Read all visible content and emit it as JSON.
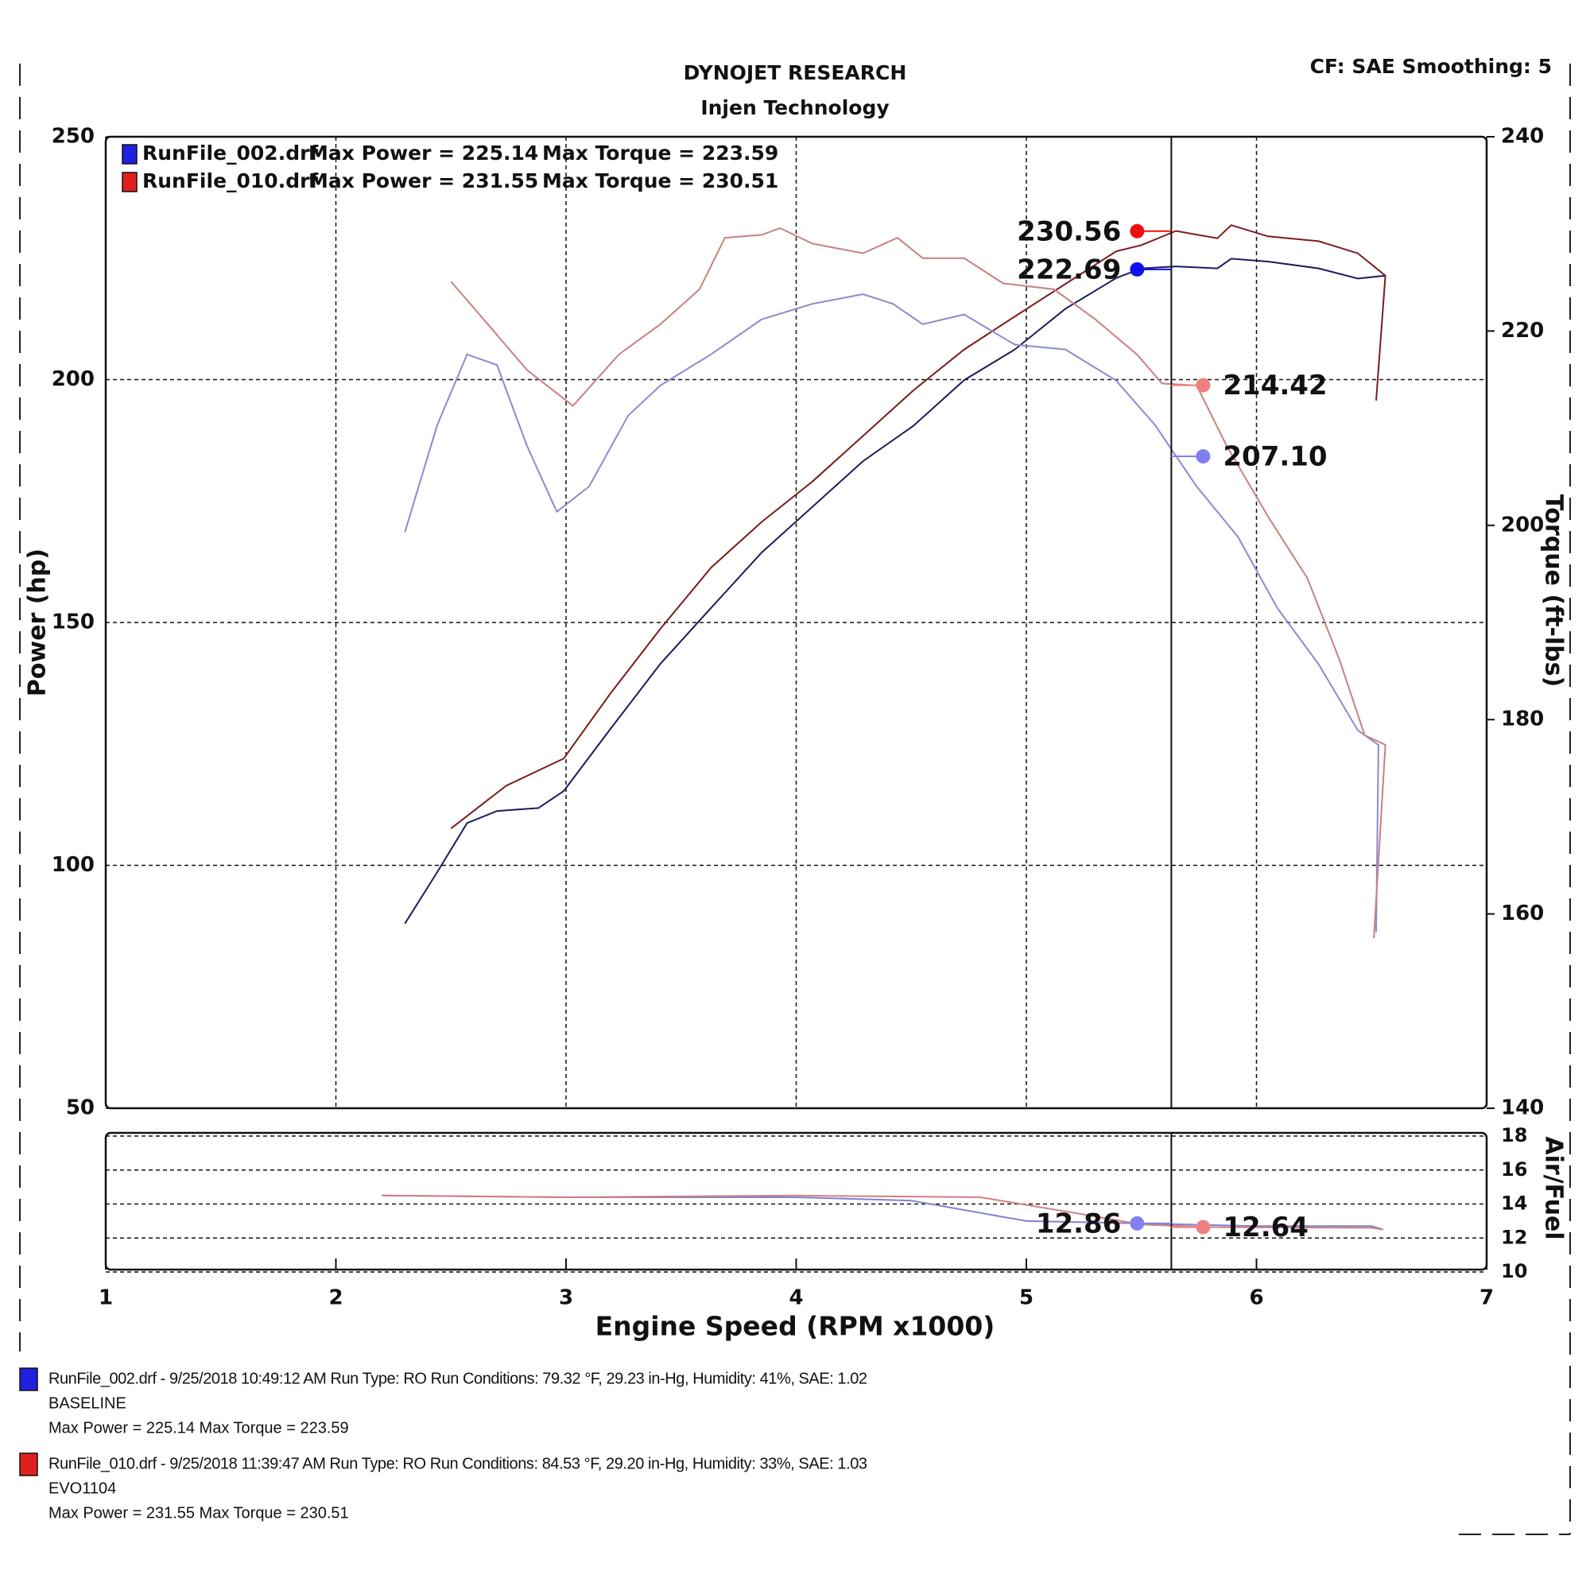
{
  "header": {
    "title": "DYNOJET RESEARCH",
    "subtitle": "Injen Technology",
    "settings": "CF: SAE  Smoothing: 5"
  },
  "chart_data": [
    {
      "type": "line",
      "ylabel": "Power (hp)",
      "y2label": "Torque (ft-lbs)",
      "xlim": [
        1,
        7
      ],
      "xticks": [
        1,
        2,
        3,
        4,
        5,
        6,
        7
      ],
      "ylim": [
        50,
        250
      ],
      "yticks": [
        50,
        100,
        150,
        200,
        250
      ],
      "y2lim": [
        140,
        240
      ],
      "y2ticks": [
        140,
        160,
        180,
        200,
        220,
        240
      ],
      "grid": true,
      "legend": [
        {
          "file": "RunFile_002.drf",
          "power": "Max Power = 225.14",
          "torque": "Max Torque = 223.59",
          "color": "#2020e0"
        },
        {
          "file": "RunFile_010.drf",
          "power": "Max Power = 231.55",
          "torque": "Max Torque = 230.51",
          "color": "#e02020"
        }
      ],
      "series": [
        {
          "color": "#1c1c5c",
          "axis": "y",
          "x": [
            2.3,
            2.44,
            2.57,
            2.7,
            2.88,
            2.99,
            3.19,
            3.41,
            3.63,
            3.85,
            4.07,
            4.29,
            4.51,
            4.73,
            4.95,
            5.17,
            5.39,
            5.5,
            5.65,
            5.83,
            5.89,
            6.05,
            6.27,
            6.44,
            6.56
          ],
          "values": [
            88.0,
            98.6,
            108.7,
            111.2,
            111.8,
            115.3,
            127.9,
            141.5,
            153.0,
            164.4,
            173.8,
            183.2,
            190.5,
            199.9,
            206.2,
            214.6,
            220.9,
            222.9,
            223.3,
            222.9,
            224.9,
            224.3,
            222.9,
            220.8,
            221.4
          ]
        },
        {
          "color": "#7a1c1c",
          "axis": "y",
          "x": [
            2.5,
            2.74,
            2.99,
            3.19,
            3.41,
            3.63,
            3.85,
            4.07,
            4.29,
            4.51,
            4.73,
            4.95,
            5.17,
            5.39,
            5.5,
            5.65,
            5.83,
            5.89,
            6.05,
            6.27,
            6.44,
            6.56,
            6.52
          ],
          "values": [
            107.6,
            116.4,
            122.0,
            135.2,
            148.7,
            161.3,
            170.7,
            179.0,
            188.4,
            197.8,
            206.2,
            213.0,
            219.7,
            226.4,
            227.7,
            230.6,
            229.1,
            231.8,
            229.5,
            228.5,
            226.0,
            221.4,
            195.7
          ]
        },
        {
          "color": "#8a8ad0",
          "axis": "y2",
          "x": [
            2.3,
            2.44,
            2.57,
            2.7,
            2.83,
            2.96,
            3.1,
            3.27,
            3.41,
            3.63,
            3.85,
            4.07,
            4.29,
            4.42,
            4.55,
            4.73,
            4.95,
            5.17,
            5.39,
            5.56,
            5.74,
            5.92,
            6.09,
            6.27,
            6.44,
            6.53,
            6.52
          ],
          "values": [
            199.3,
            210.3,
            217.6,
            216.5,
            208.2,
            201.4,
            204.0,
            211.3,
            214.4,
            217.6,
            221.2,
            222.8,
            223.8,
            222.8,
            220.7,
            221.7,
            218.6,
            218.1,
            214.9,
            210.3,
            204.0,
            198.8,
            191.5,
            185.7,
            178.9,
            177.4,
            158.1
          ]
        },
        {
          "color": "#c88080",
          "axis": "y2",
          "x": [
            2.5,
            2.66,
            2.83,
            3.03,
            3.23,
            3.41,
            3.58,
            3.69,
            3.85,
            3.93,
            4.07,
            4.29,
            4.44,
            4.55,
            4.73,
            4.9,
            5.12,
            5.3,
            5.48,
            5.59,
            5.74,
            5.87,
            6.05,
            6.22,
            6.36,
            6.47,
            6.56,
            6.51
          ],
          "values": [
            225.1,
            220.7,
            216.0,
            212.3,
            217.6,
            220.7,
            224.3,
            229.6,
            229.9,
            230.6,
            229.0,
            228.0,
            229.6,
            227.5,
            227.5,
            224.9,
            224.3,
            221.2,
            217.6,
            214.6,
            214.4,
            208.2,
            200.9,
            194.6,
            186.2,
            178.4,
            177.4,
            157.5
          ]
        }
      ],
      "cursor": {
        "x": 5.63,
        "readouts": [
          {
            "value": 230.56,
            "axis": "y",
            "color": "#ee1111"
          },
          {
            "value": 222.69,
            "axis": "y",
            "color": "#1111ee"
          },
          {
            "value": 214.42,
            "axis": "y2",
            "color": "#f08080"
          },
          {
            "value": 207.1,
            "label": "207.10",
            "axis": "y2",
            "color": "#8080f0"
          }
        ]
      }
    },
    {
      "type": "line",
      "ylabel": "Air/Fuel",
      "xlabel": "Engine Speed (RPM x1000)",
      "xlim": [
        1,
        7
      ],
      "xticks": [
        1,
        2,
        3,
        4,
        5,
        6,
        7
      ],
      "ylim": [
        10,
        18
      ],
      "yticks": [
        10,
        12,
        14,
        16,
        18
      ],
      "grid": true,
      "series": [
        {
          "color": "#8080d0",
          "axis": "y",
          "x": [
            2.2,
            3.0,
            4.0,
            4.5,
            5.0,
            5.5,
            6.0,
            6.5,
            6.55
          ],
          "values": [
            14.5,
            14.4,
            14.4,
            14.2,
            13.0,
            12.86,
            12.7,
            12.7,
            12.5
          ]
        },
        {
          "color": "#d08080",
          "axis": "y",
          "x": [
            2.2,
            3.0,
            4.0,
            4.8,
            5.2,
            5.5,
            5.8,
            6.5,
            6.55
          ],
          "values": [
            14.5,
            14.4,
            14.5,
            14.4,
            13.5,
            12.8,
            12.64,
            12.6,
            12.5
          ]
        }
      ],
      "cursor": {
        "x": 5.63,
        "readouts": [
          {
            "value": 12.86,
            "axis": "y",
            "color": "#8080f0"
          },
          {
            "value": 12.64,
            "axis": "y",
            "color": "#f08080"
          }
        ]
      }
    }
  ],
  "footer": [
    {
      "color": "#2a2aa0",
      "square": "#2020e0",
      "lines": [
        "RunFile_002.drf - 9/25/2018 10:49:12 AM  Run Type: RO  Run Conditions: 79.32 °F, 29.23 in-Hg,  Humidity:  41%, SAE: 1.02",
        "BASELINE",
        "Max Power = 225.14  Max Torque = 223.59"
      ]
    },
    {
      "color": "#c02020",
      "square": "#e02020",
      "lines": [
        "RunFile_010.drf - 9/25/2018 11:39:47 AM  Run Type: RO  Run Conditions: 84.53 °F, 29.20 in-Hg,  Humidity:  33%, SAE: 1.03",
        "EVO1104",
        "Max Power = 231.55  Max Torque = 230.51"
      ]
    }
  ]
}
